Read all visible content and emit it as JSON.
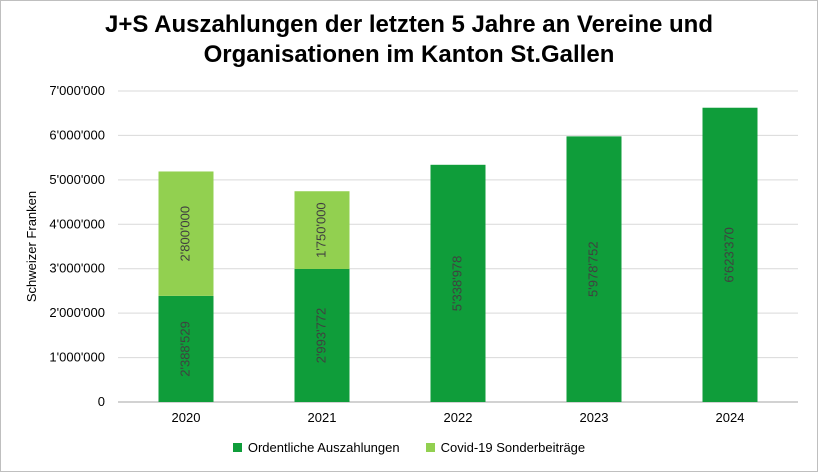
{
  "chart_data": {
    "type": "bar",
    "stacked": true,
    "title_lines": [
      "J+S Auszahlungen der letzten 5 Jahre an Vereine und",
      "Organisationen im Kanton St.Gallen"
    ],
    "ylabel": "Schweizer Franken",
    "xlabel": "",
    "categories": [
      "2020",
      "2021",
      "2022",
      "2023",
      "2024"
    ],
    "ylim": [
      0,
      7000000
    ],
    "yticks": [
      0,
      1000000,
      2000000,
      3000000,
      4000000,
      5000000,
      6000000,
      7000000
    ],
    "ytick_labels": [
      "0",
      "1'000'000",
      "2'000'000",
      "3'000'000",
      "4'000'000",
      "5'000'000",
      "6'000'000",
      "7'000'000"
    ],
    "grid": true,
    "legend_position": "bottom",
    "series": [
      {
        "name": "Ordentliche Auszahlungen",
        "color": "#0f9d3a",
        "values": [
          2388529,
          2993772,
          5338978,
          5978752,
          6623370
        ],
        "labels": [
          "2'388'529",
          "2'993'772",
          "5'338'978",
          "5'978'752",
          "6'623'370"
        ]
      },
      {
        "name": "Covid-19 Sonderbeiträge",
        "color": "#92d050",
        "values": [
          2800000,
          1750000,
          null,
          null,
          null
        ],
        "labels": [
          "2'800'000",
          "1'750'000",
          null,
          null,
          null
        ]
      }
    ]
  }
}
